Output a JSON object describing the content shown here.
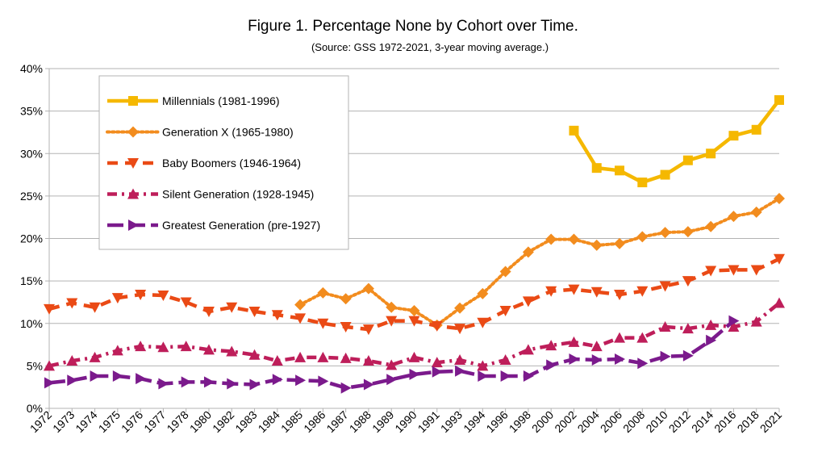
{
  "chart_data": {
    "type": "line",
    "title": "Figure 1. Percentage None by Cohort over Time.",
    "subtitle": "(Source: GSS 1972-2021, 3-year moving average.)",
    "xlabel": "",
    "ylabel": "",
    "ylim": [
      0,
      40
    ],
    "y_ticks": [
      "0%",
      "5%",
      "10%",
      "15%",
      "20%",
      "25%",
      "30%",
      "35%",
      "40%"
    ],
    "grid": "horizontal",
    "legend_position": "top-left",
    "categories": [
      "1972",
      "1973",
      "1974",
      "1975",
      "1976",
      "1977",
      "1978",
      "1980",
      "1982",
      "1983",
      "1984",
      "1985",
      "1986",
      "1987",
      "1988",
      "1989",
      "1990",
      "1991",
      "1993",
      "1994",
      "1996",
      "1998",
      "2000",
      "2002",
      "2004",
      "2006",
      "2008",
      "2010",
      "2012",
      "2014",
      "2016",
      "2018",
      "2021"
    ],
    "series": [
      {
        "name": "Millennials (1981-1996)",
        "color": "#F5B800",
        "line": "solid",
        "marker": "square",
        "values": [
          null,
          null,
          null,
          null,
          null,
          null,
          null,
          null,
          null,
          null,
          null,
          null,
          null,
          null,
          null,
          null,
          null,
          null,
          null,
          null,
          null,
          null,
          null,
          32.7,
          28.3,
          28.0,
          26.6,
          27.5,
          29.2,
          30.0,
          32.1,
          32.8,
          36.3
        ]
      },
      {
        "name": "Generation X (1965-1980)",
        "color": "#F28C1E",
        "line": "dotted",
        "marker": "diamond",
        "values": [
          null,
          null,
          null,
          null,
          null,
          null,
          null,
          null,
          null,
          null,
          null,
          12.2,
          13.6,
          12.9,
          14.1,
          11.9,
          11.5,
          9.8,
          11.8,
          13.5,
          16.1,
          18.4,
          19.9,
          19.9,
          19.2,
          19.4,
          20.2,
          20.7,
          20.8,
          21.4,
          22.6,
          23.1,
          24.7
        ]
      },
      {
        "name": "Baby Boomers (1946-1964)",
        "color": "#EA4A15",
        "line": "dashed",
        "marker": "triangle-down",
        "values": [
          11.7,
          12.4,
          11.9,
          13.0,
          13.4,
          13.3,
          12.5,
          11.4,
          11.9,
          11.4,
          11.0,
          10.6,
          10.0,
          9.6,
          9.3,
          10.3,
          10.3,
          9.7,
          9.4,
          10.1,
          11.5,
          12.6,
          13.8,
          14.0,
          13.7,
          13.4,
          13.8,
          14.4,
          15.0,
          16.2,
          16.3,
          16.3,
          17.6
        ]
      },
      {
        "name": "Silent Generation (1928-1945)",
        "color": "#BE1E5A",
        "line": "dash-dot",
        "marker": "triangle-up",
        "values": [
          5.0,
          5.6,
          6.0,
          6.8,
          7.3,
          7.2,
          7.3,
          6.9,
          6.7,
          6.3,
          5.6,
          6.0,
          6.0,
          5.9,
          5.6,
          5.1,
          6.0,
          5.4,
          5.7,
          5.0,
          5.7,
          6.9,
          7.4,
          7.8,
          7.3,
          8.3,
          8.3,
          9.6,
          9.4,
          9.8,
          9.6,
          10.2,
          12.4
        ]
      },
      {
        "name": "Greatest Generation (pre-1927)",
        "color": "#7B1A8C",
        "line": "long-dash",
        "marker": "arrow-right",
        "values": [
          3.0,
          3.3,
          3.8,
          3.8,
          3.5,
          2.9,
          3.1,
          3.1,
          2.9,
          2.8,
          3.4,
          3.3,
          3.2,
          2.4,
          2.8,
          3.4,
          4.0,
          4.3,
          4.4,
          3.8,
          3.8,
          3.8,
          5.1,
          5.8,
          5.7,
          5.8,
          5.3,
          6.1,
          6.2,
          8.0,
          10.3,
          null,
          null
        ]
      }
    ]
  }
}
